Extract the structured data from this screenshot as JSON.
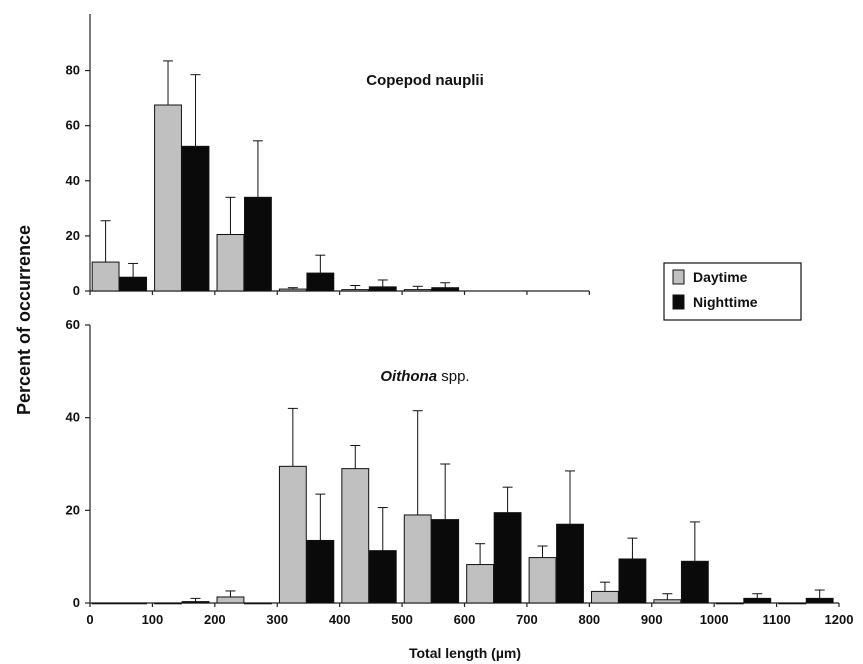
{
  "chart_data": [
    {
      "type": "bar",
      "title": "Copepod nauplii",
      "title_style": "bold",
      "xlabel": "Total length (µm)",
      "ylabel": "Percent of occurrence",
      "ylim": [
        0,
        90
      ],
      "yticks": [
        0,
        20,
        40,
        60,
        80
      ],
      "bin_width": 100,
      "x": [
        0,
        100,
        200,
        300,
        400,
        500
      ],
      "series": [
        {
          "name": "Daytime",
          "color": "#c0c0c0",
          "values": [
            10.5,
            67.5,
            20.5,
            0.7,
            0.5,
            0.5
          ],
          "errors": [
            15,
            16,
            13.5,
            0.5,
            1.5,
            1.2
          ]
        },
        {
          "name": "Nighttime",
          "color": "#0a0a0a",
          "values": [
            5,
            52.5,
            34,
            6.5,
            1.5,
            1.2
          ],
          "errors": [
            5,
            26,
            20.5,
            6.5,
            2.5,
            1.8
          ]
        }
      ],
      "legend": {
        "entries": [
          "Daytime",
          "Nighttime"
        ],
        "position": "right"
      }
    },
    {
      "type": "bar",
      "title_main": "Oithona",
      "title_suffix": " spp.",
      "xlabel": "Total length (µm)",
      "ylabel": "Percent of occurrence",
      "ylim": [
        0,
        60
      ],
      "yticks": [
        0,
        20,
        40,
        60
      ],
      "xlim": [
        0,
        1200
      ],
      "xticks": [
        0,
        100,
        200,
        300,
        400,
        500,
        600,
        700,
        800,
        900,
        1000,
        1100,
        1200
      ],
      "bin_width": 100,
      "x": [
        0,
        100,
        200,
        300,
        400,
        500,
        600,
        700,
        800,
        900,
        1000,
        1100
      ],
      "series": [
        {
          "name": "Daytime",
          "color": "#c0c0c0",
          "values": [
            0,
            0,
            1.3,
            29.5,
            29,
            19,
            8.3,
            9.8,
            2.5,
            0.7,
            0,
            0
          ],
          "errors": [
            0,
            0,
            1.3,
            12.5,
            5,
            22.5,
            4.5,
            2.5,
            2,
            1.3,
            0,
            0
          ]
        },
        {
          "name": "Nighttime",
          "color": "#0a0a0a",
          "values": [
            0,
            0.3,
            0,
            13.5,
            11.3,
            18,
            19.5,
            17,
            9.5,
            9,
            1,
            1
          ],
          "errors": [
            0,
            0.7,
            0,
            10,
            9.3,
            12,
            5.5,
            11.5,
            4.5,
            8.5,
            1,
            1.8
          ]
        }
      ]
    }
  ]
}
